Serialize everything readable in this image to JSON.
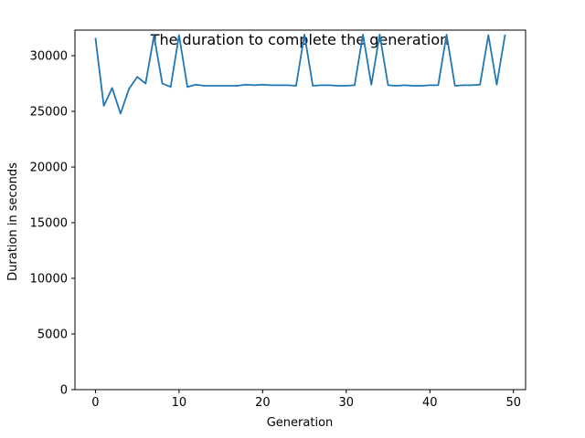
{
  "chart_data": {
    "type": "line",
    "title": "The duration to complete the generation",
    "xlabel": "Generation",
    "ylabel": "Duration in seconds",
    "xlim": [
      -2.45,
      51.45
    ],
    "ylim": [
      0,
      32300
    ],
    "xticks": [
      0,
      10,
      20,
      30,
      40,
      50
    ],
    "yticks": [
      0,
      5000,
      10000,
      15000,
      20000,
      25000,
      30000
    ],
    "grid": false,
    "legend": "none",
    "series": [
      {
        "color": "#1f77b4",
        "x": [
          0,
          1,
          2,
          3,
          4,
          5,
          6,
          7,
          8,
          9,
          10,
          11,
          12,
          13,
          14,
          15,
          16,
          17,
          18,
          19,
          20,
          21,
          22,
          23,
          24,
          25,
          26,
          27,
          28,
          29,
          30,
          31,
          32,
          33,
          34,
          35,
          36,
          37,
          38,
          39,
          40,
          41,
          42,
          43,
          44,
          45,
          46,
          47,
          48,
          49
        ],
        "values": [
          31600,
          25500,
          27100,
          24800,
          27000,
          28100,
          27500,
          31800,
          27500,
          27200,
          31850,
          27200,
          27400,
          27300,
          27300,
          27300,
          27300,
          27300,
          27400,
          27350,
          27400,
          27350,
          27350,
          27350,
          27300,
          31900,
          27300,
          27350,
          27350,
          27300,
          27300,
          27350,
          31900,
          27400,
          31900,
          27350,
          27300,
          27350,
          27300,
          27300,
          27350,
          27350,
          31900,
          27300,
          27350,
          27350,
          27400,
          31850,
          27400,
          31900
        ]
      }
    ]
  }
}
